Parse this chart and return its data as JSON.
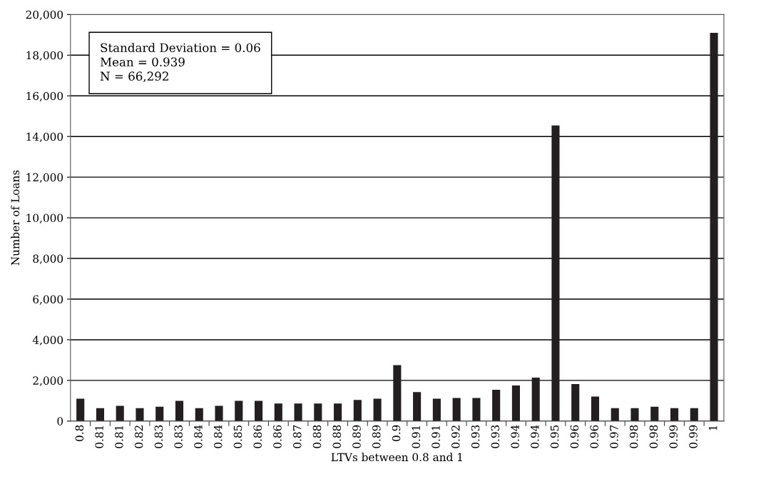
{
  "chart_data": {
    "type": "bar",
    "xlabel": "LTVs between 0.8 and 1",
    "ylabel": "Number of Loans",
    "categories": [
      "0.8",
      "0.81",
      "0.81",
      "0.82",
      "0.83",
      "0.83",
      "0.84",
      "0.84",
      "0.85",
      "0.86",
      "0.86",
      "0.87",
      "0.88",
      "0.88",
      "0.89",
      "0.89",
      "0.9",
      "0.91",
      "0.91",
      "0.92",
      "0.93",
      "0.93",
      "0.94",
      "0.94",
      "0.95",
      "0.96",
      "0.96",
      "0.97",
      "0.98",
      "0.98",
      "0.99",
      "0.99",
      "1"
    ],
    "values": [
      1100,
      640,
      750,
      640,
      710,
      1000,
      640,
      750,
      1000,
      1000,
      860,
      860,
      860,
      860,
      1040,
      1100,
      2750,
      1430,
      1100,
      1140,
      1140,
      1540,
      1750,
      2140,
      14540,
      1820,
      1210,
      640,
      640,
      710,
      640,
      640,
      19100
    ],
    "color": "#231f20",
    "ylim": [
      0,
      20000
    ],
    "yticks": [
      {
        "value": 0,
        "label": "0"
      },
      {
        "value": 2000,
        "label": "2,000"
      },
      {
        "value": 4000,
        "label": "4,000"
      },
      {
        "value": 6000,
        "label": "6,000"
      },
      {
        "value": 8000,
        "label": "8,000"
      },
      {
        "value": 10000,
        "label": "10,000"
      },
      {
        "value": 12000,
        "label": "12,000"
      },
      {
        "value": 14000,
        "label": "14,000"
      },
      {
        "value": 16000,
        "label": "16,000"
      },
      {
        "value": 18000,
        "label": "18,000"
      },
      {
        "value": 20000,
        "label": "20,000"
      }
    ],
    "grid": "y",
    "annotations": [
      "Standard Deviation = 0.06\nMean = 0.939\nN = 66,292"
    ]
  }
}
